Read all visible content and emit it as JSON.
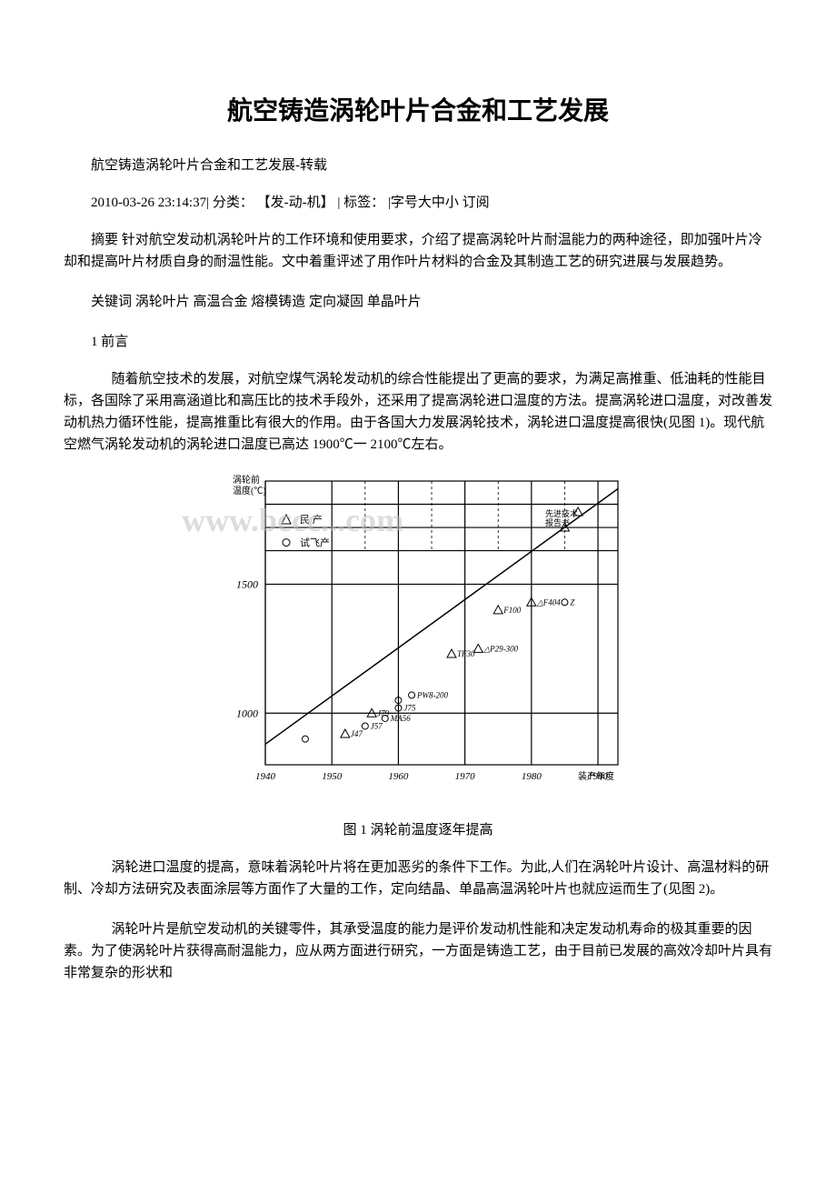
{
  "title": "航空铸造涡轮叶片合金和工艺发展",
  "subtitle": "航空铸造涡轮叶片合金和工艺发展-转载",
  "meta": "2010-03-26 23:14:37|  分类： 【发-动-机】 |  标签： |字号大中小 订阅",
  "abstract": "摘要 针对航空发动机涡轮叶片的工作环境和使用要求，介绍了提高涡轮叶片耐温能力的两种途径，即加强叶片冷却和提高叶片材质自身的耐温性能。文中着重评述了用作叶片材料的合金及其制造工艺的研究进展与发展趋势。",
  "keywords": "关键词 涡轮叶片 高温合金 熔模铸造 定向凝固 单晶叶片",
  "section1": "1 前言",
  "para1": "随着航空技术的发展，对航空煤气涡轮发动机的综合性能提出了更高的要求，为满足高推重、低油耗的性能目标，各国除了采用高涵道比和高压比的技术手段外，还采用了提高涡轮进口温度的方法。提高涡轮进口温度，对改善发动机热力循环性能，提高推重比有很大的作用。由于各国大力发展涡轮技术，涡轮进口温度提高很快(见图 1)。现代航空燃气涡轮发动机的涡轮进口温度已高达 1900℃一 2100℃左右。",
  "figure1_caption": "图 1    涡轮前温度逐年提高",
  "para2": "涡轮进口温度的提高，意味着涡轮叶片将在更加恶劣的条件下工作。为此,人们在涡轮叶片设计、高温材料的研制、冷却方法研究及表面涂层等方面作了大量的工作，定向结晶、单晶高温涡轮叶片也就应运而生了(见图 2)。",
  "para3": "涡轮叶片是航空发动机的关键零件，其承受温度的能力是评价发动机性能和决定发动机寿命的极其重要的因素。为了使涡轮叶片获得高耐温能力，应从两方面进行研究，一方面是铸造工艺，由于目前已发展的高效冷却叶片具有非常复杂的形状和",
  "watermark_text": "www.bccc...com",
  "chart": {
    "type": "line",
    "x_axis_label_years": [
      "1940",
      "1950",
      "1960",
      "1970",
      "1980",
      "1990"
    ],
    "x_axis_end_label": "装产年度",
    "y_axis_label": "涡轮前温度(℃)",
    "y_gridlines": [
      1000,
      1500
    ],
    "y_range": [
      800,
      1900
    ],
    "x_range": [
      1940,
      1993
    ],
    "trend_line": {
      "x1": 1940,
      "y1": 880,
      "x2": 1993,
      "y2": 1870
    },
    "legend": [
      {
        "marker": "triangle",
        "label": "民 产"
      },
      {
        "marker": "circle",
        "label": "试飞产"
      }
    ],
    "top_right_box": "先进技术报告书",
    "data_points": [
      {
        "x": 1946,
        "y": 900,
        "label": "",
        "marker": "circle"
      },
      {
        "x": 1952,
        "y": 920,
        "label": "J47",
        "marker": "triangle"
      },
      {
        "x": 1955,
        "y": 950,
        "label": "J57",
        "marker": "circle"
      },
      {
        "x": 1956,
        "y": 1000,
        "label": "J79",
        "marker": "triangle"
      },
      {
        "x": 1958,
        "y": 980,
        "label": "MA56",
        "marker": "circle"
      },
      {
        "x": 1960,
        "y": 1020,
        "label": "J75",
        "marker": "circle"
      },
      {
        "x": 1960,
        "y": 1050,
        "label": "",
        "marker": "circle"
      },
      {
        "x": 1962,
        "y": 1070,
        "label": "PW8-200",
        "marker": "circle"
      },
      {
        "x": 1968,
        "y": 1230,
        "label": "TF30",
        "marker": "triangle"
      },
      {
        "x": 1972,
        "y": 1250,
        "label": "△P29-300",
        "marker": "triangle"
      },
      {
        "x": 1975,
        "y": 1400,
        "label": "F100",
        "marker": "triangle"
      },
      {
        "x": 1980,
        "y": 1430,
        "label": "△F404",
        "marker": "triangle"
      },
      {
        "x": 1985,
        "y": 1430,
        "label": "Z",
        "marker": "circle"
      },
      {
        "x": 1985,
        "y": 1720,
        "label": "",
        "marker": "triangle"
      },
      {
        "x": 1987,
        "y": 1780,
        "label": "",
        "marker": "triangle"
      }
    ],
    "colors": {
      "background": "#ffffff",
      "axis": "#000000",
      "grid": "#000000",
      "line": "#000000",
      "text": "#000000"
    },
    "stroke_width": 1.2
  }
}
